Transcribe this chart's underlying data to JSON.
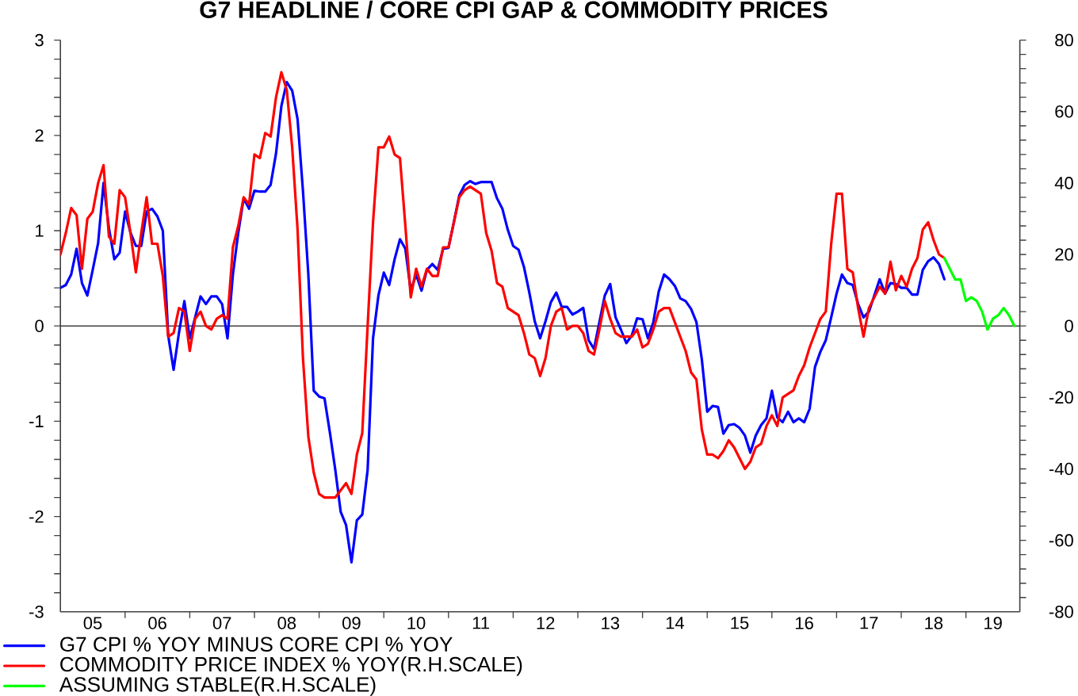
{
  "chart_data": {
    "type": "line",
    "title": "G7 HEADLINE / CORE CPI GAP & COMMODITY PRICES",
    "x": [
      "2005-01",
      "2005-02",
      "2005-03",
      "2005-04",
      "2005-05",
      "2005-06",
      "2005-07",
      "2005-08",
      "2005-09",
      "2005-10",
      "2005-11",
      "2005-12",
      "2006-01",
      "2006-02",
      "2006-03",
      "2006-04",
      "2006-05",
      "2006-06",
      "2006-07",
      "2006-08",
      "2006-09",
      "2006-10",
      "2006-11",
      "2006-12",
      "2007-01",
      "2007-02",
      "2007-03",
      "2007-04",
      "2007-05",
      "2007-06",
      "2007-07",
      "2007-08",
      "2007-09",
      "2007-10",
      "2007-11",
      "2007-12",
      "2008-01",
      "2008-02",
      "2008-03",
      "2008-04",
      "2008-05",
      "2008-06",
      "2008-07",
      "2008-08",
      "2008-09",
      "2008-10",
      "2008-11",
      "2008-12",
      "2009-01",
      "2009-02",
      "2009-03",
      "2009-04",
      "2009-05",
      "2009-06",
      "2009-07",
      "2009-08",
      "2009-09",
      "2009-10",
      "2009-11",
      "2009-12",
      "2010-01",
      "2010-02",
      "2010-03",
      "2010-04",
      "2010-05",
      "2010-06",
      "2010-07",
      "2010-08",
      "2010-09",
      "2010-10",
      "2010-11",
      "2010-12",
      "2011-01",
      "2011-02",
      "2011-03",
      "2011-04",
      "2011-05",
      "2011-06",
      "2011-07",
      "2011-08",
      "2011-09",
      "2011-10",
      "2011-11",
      "2011-12",
      "2012-01",
      "2012-02",
      "2012-03",
      "2012-04",
      "2012-05",
      "2012-06",
      "2012-07",
      "2012-08",
      "2012-09",
      "2012-10",
      "2012-11",
      "2012-12",
      "2013-01",
      "2013-02",
      "2013-03",
      "2013-04",
      "2013-05",
      "2013-06",
      "2013-07",
      "2013-08",
      "2013-09",
      "2013-10",
      "2013-11",
      "2013-12",
      "2014-01",
      "2014-02",
      "2014-03",
      "2014-04",
      "2014-05",
      "2014-06",
      "2014-07",
      "2014-08",
      "2014-09",
      "2014-10",
      "2014-11",
      "2014-12",
      "2015-01",
      "2015-02",
      "2015-03",
      "2015-04",
      "2015-05",
      "2015-06",
      "2015-07",
      "2015-08",
      "2015-09",
      "2015-10",
      "2015-11",
      "2015-12",
      "2016-01",
      "2016-02",
      "2016-03",
      "2016-04",
      "2016-05",
      "2016-06",
      "2016-07",
      "2016-08",
      "2016-09",
      "2016-10",
      "2016-11",
      "2016-12",
      "2017-01",
      "2017-02",
      "2017-03",
      "2017-04",
      "2017-05",
      "2017-06",
      "2017-07",
      "2017-08",
      "2017-09",
      "2017-10",
      "2017-11",
      "2017-12",
      "2018-01",
      "2018-02",
      "2018-03",
      "2018-04",
      "2018-05",
      "2018-06",
      "2018-07",
      "2018-08",
      "2018-09"
    ],
    "xlim": [
      "2005-01",
      "2019-11"
    ],
    "xticks": [
      {
        "value": "2005-07",
        "label": "05"
      },
      {
        "value": "2006-01",
        "label": null
      },
      {
        "value": "2006-07",
        "label": "06"
      },
      {
        "value": "2007-01",
        "label": null
      },
      {
        "value": "2007-07",
        "label": "07"
      },
      {
        "value": "2008-01",
        "label": null
      },
      {
        "value": "2008-07",
        "label": "08"
      },
      {
        "value": "2009-01",
        "label": null
      },
      {
        "value": "2009-07",
        "label": "09"
      },
      {
        "value": "2010-01",
        "label": null
      },
      {
        "value": "2010-07",
        "label": "10"
      },
      {
        "value": "2011-01",
        "label": null
      },
      {
        "value": "2011-07",
        "label": "11"
      },
      {
        "value": "2012-01",
        "label": null
      },
      {
        "value": "2012-07",
        "label": "12"
      },
      {
        "value": "2013-01",
        "label": null
      },
      {
        "value": "2013-07",
        "label": "13"
      },
      {
        "value": "2014-01",
        "label": null
      },
      {
        "value": "2014-07",
        "label": "14"
      },
      {
        "value": "2015-01",
        "label": null
      },
      {
        "value": "2015-07",
        "label": "15"
      },
      {
        "value": "2016-01",
        "label": null
      },
      {
        "value": "2016-07",
        "label": "16"
      },
      {
        "value": "2017-01",
        "label": null
      },
      {
        "value": "2017-07",
        "label": "17"
      },
      {
        "value": "2018-01",
        "label": null
      },
      {
        "value": "2018-07",
        "label": "18"
      },
      {
        "value": "2019-01",
        "label": null
      },
      {
        "value": "2019-06",
        "label": "19"
      }
    ],
    "ylim": [
      -3,
      3
    ],
    "yticks": [
      -3,
      {
        "value": -2.8,
        "label": null
      },
      {
        "value": -2.6,
        "label": null
      },
      {
        "value": -2.4,
        "label": null
      },
      {
        "value": -2.2,
        "label": null
      },
      -2,
      {
        "value": -1.8,
        "label": null
      },
      {
        "value": -1.6,
        "label": null
      },
      {
        "value": -1.4,
        "label": null
      },
      {
        "value": -1.2,
        "label": null
      },
      -1,
      {
        "value": -0.8,
        "label": null
      },
      {
        "value": -0.6,
        "label": null
      },
      {
        "value": -0.4,
        "label": null
      },
      {
        "value": -0.2,
        "label": null
      },
      0,
      {
        "value": 0.2,
        "label": null
      },
      {
        "value": 0.4,
        "label": null
      },
      {
        "value": 0.6,
        "label": null
      },
      {
        "value": 0.8,
        "label": null
      },
      1,
      {
        "value": 1.2,
        "label": null
      },
      {
        "value": 1.4,
        "label": null
      },
      {
        "value": 1.6,
        "label": null
      },
      {
        "value": 1.8,
        "label": null
      },
      2,
      {
        "value": 2.2,
        "label": null
      },
      {
        "value": 2.4,
        "label": null
      },
      {
        "value": 2.6,
        "label": null
      },
      {
        "value": 2.8,
        "label": null
      },
      3
    ],
    "y2lim": [
      -80,
      80
    ],
    "y2ticks": [
      -80,
      {
        "value": -76,
        "label": null
      },
      {
        "value": -72,
        "label": null
      },
      {
        "value": -68,
        "label": null
      },
      {
        "value": -64,
        "label": null
      },
      -60,
      {
        "value": -56,
        "label": null
      },
      {
        "value": -52,
        "label": null
      },
      {
        "value": -48,
        "label": null
      },
      {
        "value": -44,
        "label": null
      },
      -40,
      {
        "value": -36,
        "label": null
      },
      {
        "value": -32,
        "label": null
      },
      {
        "value": -28,
        "label": null
      },
      {
        "value": -24,
        "label": null
      },
      -20,
      {
        "value": -16,
        "label": null
      },
      {
        "value": -12,
        "label": null
      },
      {
        "value": -8,
        "label": null
      },
      {
        "value": -4,
        "label": null
      },
      0,
      {
        "value": 4,
        "label": null
      },
      {
        "value": 8,
        "label": null
      },
      {
        "value": 12,
        "label": null
      },
      {
        "value": 16,
        "label": null
      },
      20,
      {
        "value": 24,
        "label": null
      },
      {
        "value": 28,
        "label": null
      },
      {
        "value": 32,
        "label": null
      },
      {
        "value": 36,
        "label": null
      },
      40,
      {
        "value": 44,
        "label": null
      },
      {
        "value": 48,
        "label": null
      },
      {
        "value": 52,
        "label": null
      },
      {
        "value": 56,
        "label": null
      },
      60,
      {
        "value": 64,
        "label": null
      },
      {
        "value": 68,
        "label": null
      },
      {
        "value": 72,
        "label": null
      },
      {
        "value": 76,
        "label": null
      },
      80
    ],
    "ref_lines": [
      {
        "axis": "y",
        "value": 0,
        "color": "#404040"
      }
    ],
    "legend": "bottom left",
    "series": [
      {
        "name": "G7 CPI % YOY MINUS CORE CPI % YOY",
        "color": "#0000ff",
        "values": [
          0.4,
          0.43,
          0.54,
          0.81,
          0.45,
          0.32,
          0.59,
          0.87,
          1.5,
          1.03,
          0.7,
          0.77,
          1.2,
          0.98,
          0.84,
          0.84,
          1.2,
          1.23,
          1.15,
          1.0,
          -0.1,
          -0.46,
          -0.07,
          0.26,
          -0.13,
          0.09,
          0.31,
          0.23,
          0.31,
          0.31,
          0.23,
          -0.13,
          0.54,
          0.98,
          1.34,
          1.23,
          1.42,
          1.41,
          1.41,
          1.48,
          1.81,
          2.31,
          2.56,
          2.47,
          2.17,
          1.42,
          0.54,
          -0.68,
          -0.74,
          -0.76,
          -1.12,
          -1.51,
          -1.95,
          -2.09,
          -2.48,
          -2.04,
          -1.98,
          -1.51,
          -0.13,
          0.32,
          0.56,
          0.43,
          0.7,
          0.91,
          0.81,
          0.37,
          0.54,
          0.37,
          0.59,
          0.65,
          0.59,
          0.81,
          0.82,
          1.09,
          1.37,
          1.48,
          1.52,
          1.49,
          1.51,
          1.51,
          1.51,
          1.34,
          1.23,
          1.01,
          0.84,
          0.8,
          0.62,
          0.35,
          0.05,
          -0.13,
          0.05,
          0.25,
          0.35,
          0.2,
          0.2,
          0.12,
          0.15,
          0.19,
          -0.15,
          -0.24,
          0.04,
          0.32,
          0.44,
          0.09,
          -0.04,
          -0.18,
          -0.1,
          0.08,
          0.07,
          -0.13,
          0.04,
          0.36,
          0.54,
          0.49,
          0.42,
          0.29,
          0.26,
          0.18,
          0.04,
          -0.35,
          -0.9,
          -0.84,
          -0.85,
          -1.13,
          -1.04,
          -1.03,
          -1.07,
          -1.15,
          -1.33,
          -1.15,
          -1.04,
          -0.97,
          -0.68,
          -0.96,
          -1.01,
          -0.9,
          -1.01,
          -0.97,
          -1.01,
          -0.87,
          -0.43,
          -0.27,
          -0.15,
          0.09,
          0.34,
          0.54,
          0.45,
          0.43,
          0.23,
          0.09,
          0.15,
          0.32,
          0.49,
          0.34,
          0.45,
          0.44,
          0.4,
          0.4,
          0.33,
          0.33,
          0.59,
          0.68,
          0.72,
          0.65,
          0.49
        ]
      },
      {
        "name": "COMMODITY PRICE INDEX % YOY(R.H.SCALE)",
        "color": "#ff0000",
        "axis": "y2",
        "values": [
          20,
          26,
          33,
          31,
          16,
          30,
          32,
          40,
          45,
          25,
          23,
          38,
          36,
          26,
          15,
          26,
          36,
          23,
          23,
          14,
          -3,
          -2,
          5,
          4,
          -7,
          2,
          4,
          0,
          -1,
          2,
          3,
          2,
          22,
          28,
          36,
          34,
          48,
          47,
          54,
          53,
          64,
          71,
          66,
          50,
          27,
          -9,
          -31,
          -41,
          -47,
          -48,
          -48,
          -48,
          -46,
          -44,
          -47,
          -36,
          -30,
          0,
          29,
          50,
          50,
          53,
          48,
          47,
          28,
          8,
          16,
          11,
          16,
          14,
          14,
          22,
          22,
          29,
          36,
          38,
          39,
          38,
          37,
          26,
          21,
          12,
          11,
          5,
          4,
          3,
          -2,
          -8,
          -9,
          -14,
          -9,
          0,
          4,
          5,
          -1,
          0,
          0,
          -2,
          -7,
          -8,
          -1,
          7,
          2,
          -2,
          -3,
          -3,
          -3,
          -1,
          -6,
          -5,
          -1,
          4,
          5,
          5,
          1,
          -3,
          -7,
          -13,
          -15,
          -29,
          -36,
          -36,
          -37,
          -35,
          -32,
          -34,
          -37,
          -40,
          -38,
          -34,
          -33,
          -28,
          -25,
          -28,
          -20,
          -19,
          -18,
          -14,
          -11,
          -6,
          -2,
          2,
          4,
          23,
          37,
          37,
          16,
          15,
          5,
          -3,
          5,
          8,
          11,
          9,
          18,
          10,
          14,
          11,
          16,
          19,
          27,
          29,
          24,
          20,
          19
        ]
      },
      {
        "name": "ASSUMING STABLE(R.H.SCALE)",
        "color": "#00ff00",
        "axis": "y2",
        "x": [
          "2018-09",
          "2018-10",
          "2018-11",
          "2018-12",
          "2019-01",
          "2019-02",
          "2019-03",
          "2019-04",
          "2019-05",
          "2019-06",
          "2019-07",
          "2019-08",
          "2019-09",
          "2019-10"
        ],
        "values": [
          19,
          16,
          13,
          13,
          7,
          8,
          7,
          4,
          -1,
          2,
          3,
          5,
          3,
          0
        ]
      }
    ]
  }
}
